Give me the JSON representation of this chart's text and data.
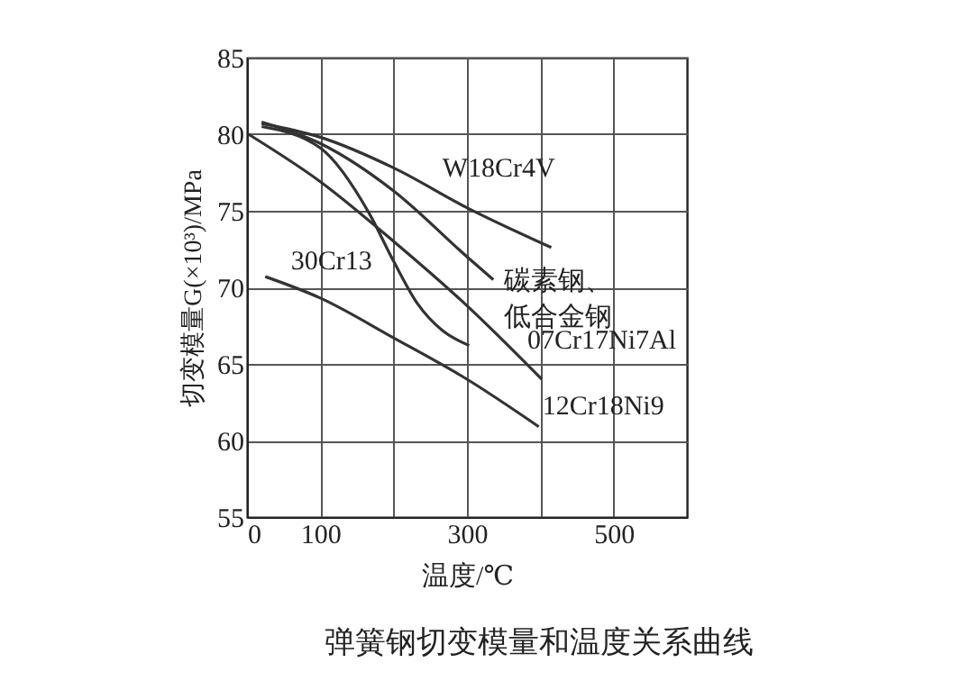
{
  "chart_data": {
    "type": "line",
    "title": "弹簧钢切变模量和温度关系曲线",
    "xlabel": "温度/℃",
    "ylabel": "切变模量G(×10³)/MPa",
    "xlim": [
      0,
      600
    ],
    "xticks": [
      0,
      100,
      {
        "value": 200,
        "label": null
      },
      300,
      {
        "value": 400,
        "label": null
      },
      500
    ],
    "ylim": [
      55,
      85
    ],
    "yticks": [
      55,
      60,
      65,
      70,
      75,
      80,
      85
    ],
    "grid": true,
    "legend": false,
    "series": [
      {
        "name": "W18Cr4V",
        "color": "#333333",
        "x": [
          20,
          100,
          200,
          300,
          415
        ],
        "values": [
          80.7,
          79.8,
          77.8,
          75.2,
          72.6
        ]
      },
      {
        "name": "碳素钢、低合金钢",
        "color": "#333333",
        "x": [
          20,
          100,
          200,
          300,
          336
        ],
        "values": [
          80.8,
          79.4,
          76.3,
          72.0,
          70.5
        ]
      },
      {
        "name": "30Cr13",
        "color": "#333333",
        "x": [
          20,
          100,
          167,
          200,
          233,
          266,
          303
        ],
        "values": [
          80.5,
          79.1,
          74.8,
          71.7,
          68.9,
          67.2,
          66.2
        ]
      },
      {
        "name": "07Cr17Ni7Al",
        "color": "#333333",
        "x": [
          2,
          100,
          200,
          300,
          402
        ],
        "values": [
          80.0,
          76.9,
          73.0,
          68.8,
          64.0
        ]
      },
      {
        "name": "12Cr18Ni9",
        "color": "#333333",
        "x": [
          25,
          100,
          200,
          300,
          398
        ],
        "values": [
          70.7,
          69.3,
          66.7,
          64.0,
          60.9
        ]
      }
    ]
  }
}
